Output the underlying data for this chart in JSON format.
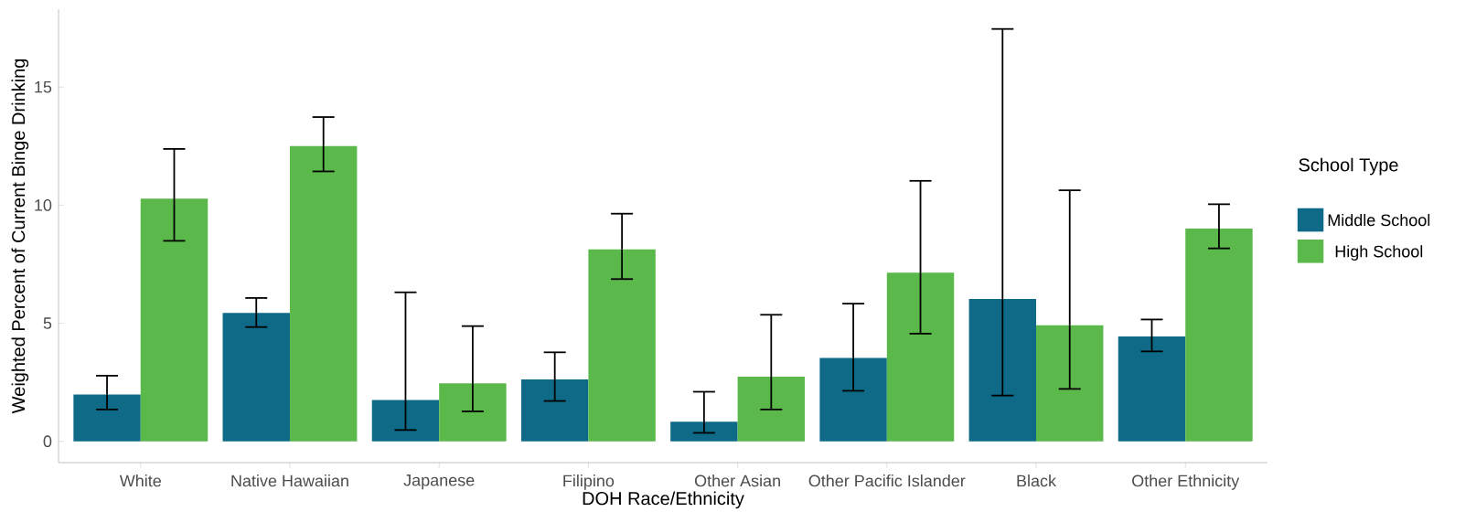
{
  "chart_data": {
    "type": "bar",
    "xlabel": "DOH Race/Ethnicity",
    "ylabel": "Weighted Percent of Current Binge Drinking",
    "legend_title": "School Type",
    "categories": [
      "White",
      "Native Hawaiian",
      "Japanese",
      "Filipino",
      "Other Asian",
      "Other Pacific Islander",
      "Black",
      "Other Ethnicity"
    ],
    "series": [
      {
        "name": "Middle School",
        "color": "#0e6a87",
        "values": [
          1.98,
          5.44,
          1.75,
          2.62,
          0.83,
          3.53,
          6.03,
          4.44
        ],
        "errors": [
          [
            1.35,
            2.78
          ],
          [
            4.84,
            6.07
          ],
          [
            0.48,
            6.31
          ],
          [
            1.71,
            3.77
          ],
          [
            0.36,
            2.1
          ],
          [
            2.14,
            5.83
          ],
          [
            1.94,
            17.46
          ],
          [
            3.81,
            5.16
          ]
        ]
      },
      {
        "name": "High School",
        "color": "#5ab94a",
        "values": [
          10.28,
          12.5,
          2.46,
          8.13,
          2.74,
          7.14,
          4.92,
          9.01
        ],
        "errors": [
          [
            8.49,
            12.38
          ],
          [
            11.43,
            13.73
          ],
          [
            1.27,
            4.88
          ],
          [
            6.87,
            9.64
          ],
          [
            1.35,
            5.36
          ],
          [
            4.56,
            11.03
          ],
          [
            2.22,
            10.63
          ],
          [
            8.17,
            10.04
          ]
        ]
      }
    ],
    "ylim": [
      -0.9,
      18.3
    ],
    "yticks": [
      0,
      5,
      10,
      15
    ],
    "grid": false,
    "legend": "right"
  }
}
